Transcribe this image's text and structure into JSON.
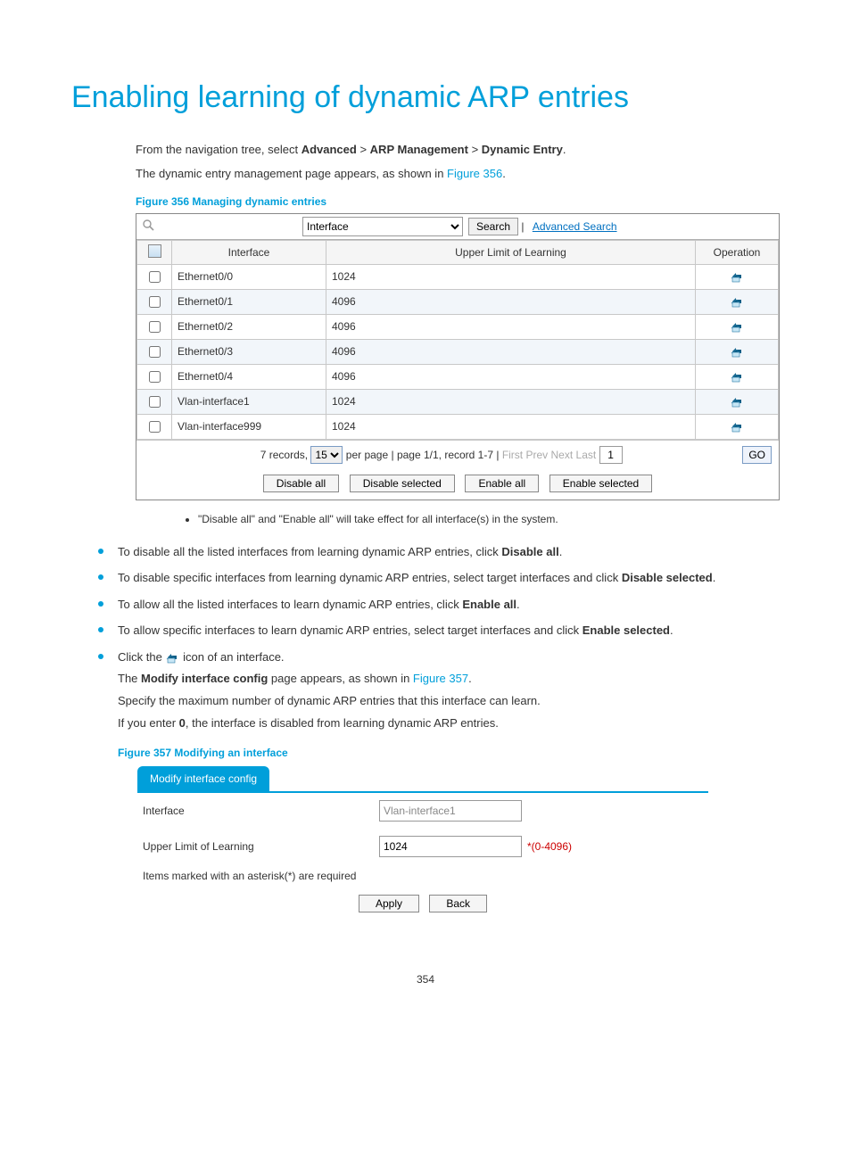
{
  "title": "Enabling learning of dynamic ARP entries",
  "intro1_a": "From the navigation tree, select ",
  "intro1_b": "Advanced",
  "intro1_c": " > ",
  "intro1_d": "ARP Management",
  "intro1_e": " > ",
  "intro1_f": "Dynamic Entry",
  "intro1_g": ".",
  "intro2_a": "The dynamic entry management page appears, as shown in ",
  "intro2_link": "Figure 356",
  "intro2_b": ".",
  "fig356_caption": "Figure 356 Managing dynamic entries",
  "search": {
    "field_option": "Interface",
    "search_btn": "Search",
    "advanced": "Advanced Search"
  },
  "grid": {
    "col_if": "Interface",
    "col_ul": "Upper Limit of Learning",
    "col_op": "Operation",
    "rows": [
      {
        "if": "Ethernet0/0",
        "ul": "1024"
      },
      {
        "if": "Ethernet0/1",
        "ul": "4096"
      },
      {
        "if": "Ethernet0/2",
        "ul": "4096"
      },
      {
        "if": "Ethernet0/3",
        "ul": "4096"
      },
      {
        "if": "Ethernet0/4",
        "ul": "4096"
      },
      {
        "if": "Vlan-interface1",
        "ul": "1024"
      },
      {
        "if": "Vlan-interface999",
        "ul": "1024"
      }
    ]
  },
  "pager": {
    "records_a": "7 records,",
    "per_page": "15",
    "text_b": "per page | page 1/1, record 1-7 |",
    "first": "First",
    "prev": "Prev",
    "next": "Next",
    "last": "Last",
    "pagenum": "1",
    "go": "GO"
  },
  "btns": {
    "disable_all": "Disable all",
    "disable_sel": "Disable selected",
    "enable_all": "Enable all",
    "enable_sel": "Enable selected"
  },
  "note_text": "\"Disable all\" and \"Enable all\" will take effect for all interface(s) in the system.",
  "bul1_a": "To disable all the listed interfaces from learning dynamic ARP entries, click ",
  "bul1_b": "Disable all",
  "bul1_c": ".",
  "bul2_a": "To disable specific interfaces from learning dynamic ARP entries, select target interfaces and click ",
  "bul2_b": "Disable selected",
  "bul2_c": ".",
  "bul3_a": "To allow all the listed interfaces to learn dynamic ARP entries, click ",
  "bul3_b": "Enable all",
  "bul3_c": ".",
  "bul4_a": "To allow specific interfaces to learn dynamic ARP entries, select target interfaces and click ",
  "bul4_b": "Enable selected",
  "bul4_c": ".",
  "bul5_a": "Click the ",
  "bul5_b": " icon of an interface.",
  "bul5_p1_a": "The ",
  "bul5_p1_b": "Modify interface config",
  "bul5_p1_c": " page appears, as shown in ",
  "bul5_p1_link": "Figure 357",
  "bul5_p1_d": ".",
  "bul5_p2": "Specify the maximum number of dynamic ARP entries that this interface can learn.",
  "bul5_p3_a": "If you enter ",
  "bul5_p3_b": "0",
  "bul5_p3_c": ", the interface is disabled from learning dynamic ARP entries.",
  "fig357_caption": "Figure 357 Modifying an interface",
  "fig357": {
    "tab": "Modify interface config",
    "lbl_if": "Interface",
    "val_if": "Vlan-interface1",
    "lbl_ul": "Upper Limit of Learning",
    "val_ul": "1024",
    "hint": "*(0-4096)",
    "req": "Items marked with an asterisk(*) are required",
    "apply": "Apply",
    "back": "Back"
  },
  "pagenum": "354",
  "icon_colors": {
    "house_fill": "#c7e6f5",
    "house_stroke": "#2a7aa5",
    "arrow": "#0a5d85"
  }
}
